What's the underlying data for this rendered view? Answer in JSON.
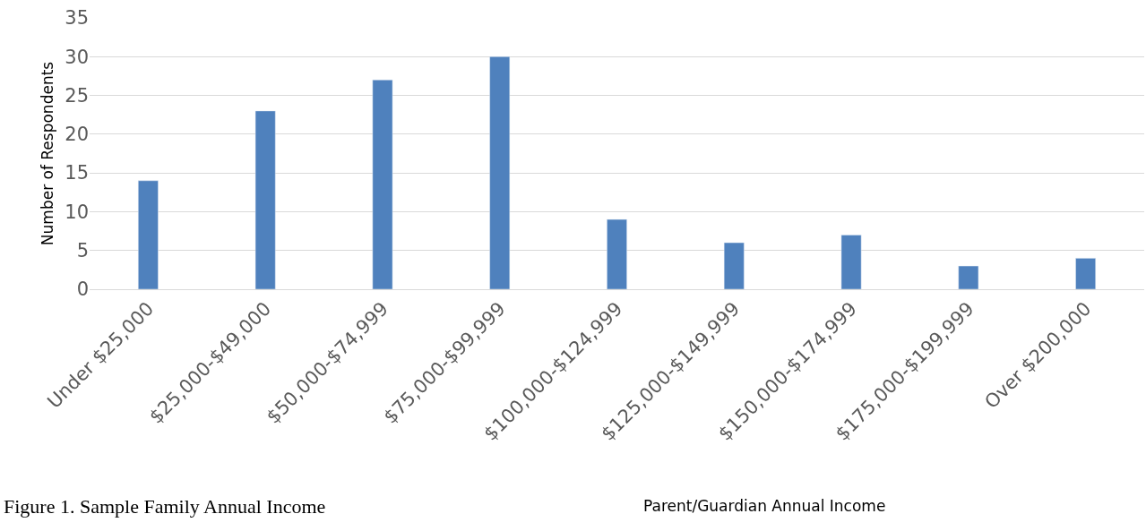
{
  "chart_data": {
    "type": "bar",
    "xlabel": "Parent/Guardian Annual Income",
    "ylabel": "Number of Respondents",
    "categories": [
      "Under $25,000",
      "$25,000-$49,000",
      "$50,000-$74,999",
      "$75,000-$99,999",
      "$100,000-$124,999",
      "$125,000-$149,999",
      "$150,000-$174,999",
      "$175,000-$199,999",
      "Over $200,000"
    ],
    "values": [
      14,
      23,
      27,
      30,
      9,
      6,
      7,
      3,
      4
    ],
    "color": "#4f81bd",
    "ylim": [
      0,
      35
    ],
    "yticks": [
      0,
      5,
      10,
      15,
      20,
      25,
      30,
      35
    ],
    "grid": "y",
    "legend": false,
    "annotations": [
      "Figure 1. Sample Family Annual Income"
    ]
  }
}
